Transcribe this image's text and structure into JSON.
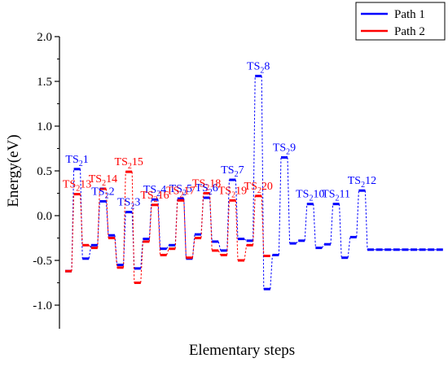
{
  "chart_data": {
    "type": "line",
    "title": "",
    "xlabel": "Elementary steps",
    "ylabel": "Energy(eV)",
    "ylim": [
      -1.0,
      2.0
    ],
    "yticks": [
      -1.0,
      -0.5,
      0.0,
      0.5,
      1.0,
      1.5,
      2.0
    ],
    "ytick_labels": [
      "-1.0",
      "-0.5",
      "0.0",
      "0.5",
      "1.0",
      "1.5",
      "2.0"
    ],
    "grid": false,
    "legend_position": "top-right",
    "series": [
      {
        "name": "Path 1",
        "color": "#0000ff",
        "x": [
          1,
          2,
          3,
          4,
          5,
          6,
          7,
          8,
          9,
          10,
          11,
          12,
          13,
          14,
          15,
          16,
          17,
          18,
          19,
          20,
          21,
          22,
          23,
          24,
          25,
          26,
          27,
          28,
          29,
          30,
          31,
          32,
          33,
          34,
          35,
          36,
          37,
          38,
          39,
          40,
          41,
          42,
          43,
          44
        ],
        "y": [
          -0.62,
          0.52,
          -0.48,
          -0.33,
          0.16,
          -0.22,
          -0.55,
          0.04,
          -0.59,
          -0.26,
          0.18,
          -0.37,
          -0.33,
          0.19,
          -0.48,
          -0.21,
          0.2,
          -0.29,
          -0.39,
          0.4,
          -0.26,
          -0.28,
          1.56,
          -0.82,
          -0.44,
          0.65,
          -0.31,
          -0.28,
          0.13,
          -0.36,
          -0.32,
          0.13,
          -0.47,
          -0.24,
          0.28,
          -0.38,
          -0.38,
          -0.38,
          -0.38,
          -0.38,
          -0.38,
          -0.38,
          -0.38,
          -0.38
        ]
      },
      {
        "name": "Path 2",
        "color": "#ff0000",
        "x": [
          1,
          2,
          3,
          4,
          5,
          6,
          7,
          8,
          9,
          10,
          11,
          12,
          13,
          14,
          15,
          16,
          17,
          18,
          19,
          20,
          21,
          22,
          23,
          24
        ],
        "y": [
          -0.62,
          0.24,
          -0.33,
          -0.36,
          0.3,
          -0.25,
          -0.58,
          0.49,
          -0.75,
          -0.29,
          0.12,
          -0.44,
          -0.37,
          0.17,
          -0.47,
          -0.25,
          0.25,
          -0.39,
          -0.44,
          0.17,
          -0.5,
          -0.33,
          0.22,
          -0.45
        ]
      }
    ],
    "annotations": [
      {
        "sub": "1",
        "series": "Path 1",
        "x": 2
      },
      {
        "sub": "2",
        "series": "Path 1",
        "x": 5
      },
      {
        "sub": "3",
        "series": "Path 1",
        "x": 8
      },
      {
        "sub": "4",
        "series": "Path 1",
        "x": 11
      },
      {
        "sub": "5",
        "series": "Path 1",
        "x": 14
      },
      {
        "sub": "6",
        "series": "Path 1",
        "x": 17
      },
      {
        "sub": "7",
        "series": "Path 1",
        "x": 20
      },
      {
        "sub": "8",
        "series": "Path 1",
        "x": 23
      },
      {
        "sub": "9",
        "series": "Path 1",
        "x": 26
      },
      {
        "sub": "10",
        "series": "Path 1",
        "x": 29
      },
      {
        "sub": "11",
        "series": "Path 1",
        "x": 32
      },
      {
        "sub": "12",
        "series": "Path 1",
        "x": 35
      },
      {
        "sub": "13",
        "series": "Path 2",
        "x": 2
      },
      {
        "sub": "14",
        "series": "Path 2",
        "x": 5
      },
      {
        "sub": "15",
        "series": "Path 2",
        "x": 8
      },
      {
        "sub": "16",
        "series": "Path 2",
        "x": 11
      },
      {
        "sub": "17",
        "series": "Path 2",
        "x": 14
      },
      {
        "sub": "18",
        "series": "Path 2",
        "x": 17
      },
      {
        "sub": "19",
        "series": "Path 2",
        "x": 20
      },
      {
        "sub": "20",
        "series": "Path 2",
        "x": 23
      }
    ],
    "annotation_prefix": "TS",
    "annotation_prefix_sub": "2"
  }
}
